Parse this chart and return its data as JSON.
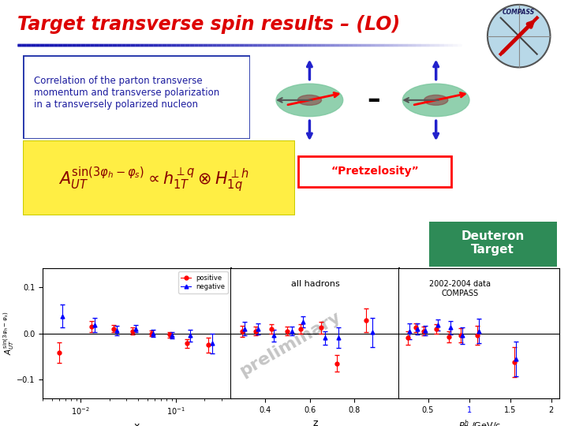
{
  "title": "Target transverse spin results – (LO)",
  "title_color": "#DD0000",
  "slide_bg": "#FFFFFF",
  "desc_text_line1": "Correlation of the parton transverse",
  "desc_text_line2": "momentum and transverse polarization",
  "desc_text_line3": "in a transversely polarized nucleon",
  "pretzelosity_label": "“Pretzelosity”",
  "deuteron_label": "Deuteron\nTarget",
  "deuteron_bg": "#2E8B57",
  "all_hadrons_label": "all hadrons",
  "compass_data_label": "2002-2004 data\nCOMPASS",
  "preliminary_text": "preliminary",
  "plot_ylabel": "$A_{UT}^{\\sin(3\\varphi_h-\\varphi_s)}$",
  "plot_xlabel_x": "x",
  "plot_xlabel_z": "z",
  "plot_xlabel_pt": "$P_T^h$ /GeV/c",
  "red_x": [
    0.006,
    0.013,
    0.022,
    0.035,
    0.055,
    0.085,
    0.13,
    0.22
  ],
  "red_y": [
    -0.042,
    0.015,
    0.01,
    0.005,
    0.0,
    -0.003,
    -0.022,
    -0.025
  ],
  "red_yerr": [
    0.022,
    0.012,
    0.008,
    0.007,
    0.006,
    0.006,
    0.01,
    0.016
  ],
  "blue_x": [
    0.0065,
    0.014,
    0.024,
    0.038,
    0.058,
    0.09,
    0.14,
    0.24
  ],
  "blue_y": [
    0.037,
    0.018,
    0.006,
    0.01,
    0.0,
    -0.004,
    -0.005,
    -0.022
  ],
  "blue_yerr": [
    0.025,
    0.015,
    0.01,
    0.008,
    0.007,
    0.007,
    0.013,
    0.022
  ],
  "red_z": [
    0.3,
    0.36,
    0.43,
    0.5,
    0.56,
    0.65,
    0.72,
    0.85
  ],
  "red_zy": [
    0.004,
    0.005,
    0.01,
    0.005,
    0.01,
    0.012,
    -0.065,
    0.028
  ],
  "red_zyerr": [
    0.012,
    0.01,
    0.01,
    0.009,
    0.01,
    0.012,
    0.018,
    0.026
  ],
  "blue_z": [
    0.31,
    0.37,
    0.44,
    0.52,
    0.57,
    0.67,
    0.73,
    0.88
  ],
  "blue_zy": [
    0.01,
    0.01,
    -0.005,
    0.005,
    0.025,
    -0.01,
    -0.01,
    0.002
  ],
  "blue_zyerr": [
    0.015,
    0.012,
    0.012,
    0.01,
    0.012,
    0.015,
    0.022,
    0.032
  ],
  "red_pt": [
    0.25,
    0.35,
    0.45,
    0.6,
    0.75,
    0.9,
    1.1,
    1.55
  ],
  "red_pty": [
    -0.01,
    0.012,
    0.005,
    0.01,
    -0.008,
    -0.004,
    -0.004,
    -0.062
  ],
  "red_ptyerr": [
    0.014,
    0.01,
    0.009,
    0.01,
    0.012,
    0.015,
    0.02,
    0.032
  ],
  "blue_pt": [
    0.27,
    0.37,
    0.47,
    0.62,
    0.77,
    0.92,
    1.12,
    1.57
  ],
  "blue_pty": [
    0.005,
    0.01,
    0.006,
    0.018,
    0.012,
    -0.005,
    0.005,
    -0.055
  ],
  "blue_ptyerr": [
    0.017,
    0.012,
    0.01,
    0.012,
    0.015,
    0.018,
    0.026,
    0.038
  ],
  "ylim": [
    -0.14,
    0.14
  ],
  "yticks": [
    -0.1,
    0.0,
    0.1
  ]
}
